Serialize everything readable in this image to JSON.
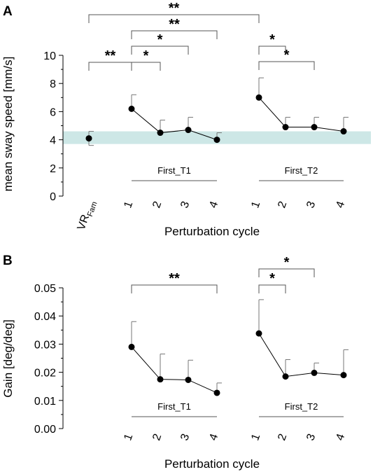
{
  "chart_data": [
    {
      "type": "scatter",
      "panel_label": "A",
      "ylabel": "mean sway speed [mm/s]",
      "xlabel": "Perturbation cycle",
      "ylim": [
        0,
        10
      ],
      "yticks": [
        "0",
        "2",
        "4",
        "6",
        "8",
        "10"
      ],
      "xticks": [
        "VR",
        "1",
        "2",
        "3",
        "4",
        "1",
        "2",
        "3",
        "4"
      ],
      "vr_subscript": "Fam",
      "band": {
        "min": 3.7,
        "max": 4.6,
        "color": "#cde7e6"
      },
      "groups": [
        {
          "label": "First_T1",
          "cycles": [
            1,
            2,
            3,
            4
          ]
        },
        {
          "label": "First_T2",
          "cycles": [
            1,
            2,
            3,
            4
          ]
        }
      ],
      "points": [
        {
          "x": "VR",
          "y": 4.1,
          "err": 0.5
        },
        {
          "x": "First_T1-1",
          "y": 6.2,
          "err": 1.0
        },
        {
          "x": "First_T1-2",
          "y": 4.5,
          "err": 0.9
        },
        {
          "x": "First_T1-3",
          "y": 4.7,
          "err": 0.9
        },
        {
          "x": "First_T1-4",
          "y": 4.0,
          "err": 0.5
        },
        {
          "x": "First_T2-1",
          "y": 7.0,
          "err": 1.4
        },
        {
          "x": "First_T2-2",
          "y": 4.9,
          "err": 0.7
        },
        {
          "x": "First_T2-3",
          "y": 4.9,
          "err": 0.7
        },
        {
          "x": "First_T2-4",
          "y": 4.6,
          "err": 1.0
        }
      ],
      "significance": [
        {
          "from": "VR",
          "to": "First_T1-1",
          "label": "**"
        },
        {
          "from": "First_T1-1",
          "to": "First_T1-2",
          "label": "*"
        },
        {
          "from": "First_T1-1",
          "to": "First_T1-3",
          "label": "*"
        },
        {
          "from": "First_T1-1",
          "to": "First_T1-4",
          "label": "**"
        },
        {
          "from": "VR",
          "to": "First_T2-1",
          "label": "**"
        },
        {
          "from": "First_T2-1",
          "to": "First_T2-2",
          "label": "*"
        },
        {
          "from": "First_T2-1",
          "to": "First_T2-3",
          "label": "*"
        }
      ]
    },
    {
      "type": "scatter",
      "panel_label": "B",
      "ylabel": "Gain [deg/deg]",
      "xlabel": "Perturbation cycle",
      "ylim": [
        0,
        0.05
      ],
      "yticks": [
        "0.00",
        "0.01",
        "0.02",
        "0.03",
        "0.04",
        "0.05"
      ],
      "xticks": [
        "1",
        "2",
        "3",
        "4",
        "1",
        "2",
        "3",
        "4"
      ],
      "groups": [
        {
          "label": "First_T1",
          "cycles": [
            1,
            2,
            3,
            4
          ]
        },
        {
          "label": "First_T2",
          "cycles": [
            1,
            2,
            3,
            4
          ]
        }
      ],
      "points": [
        {
          "x": "First_T1-1",
          "y": 0.029,
          "err": 0.009
        },
        {
          "x": "First_T1-2",
          "y": 0.0175,
          "err": 0.009
        },
        {
          "x": "First_T1-3",
          "y": 0.0173,
          "err": 0.007
        },
        {
          "x": "First_T1-4",
          "y": 0.0127,
          "err": 0.0035
        },
        {
          "x": "First_T2-1",
          "y": 0.0338,
          "err": 0.012
        },
        {
          "x": "First_T2-2",
          "y": 0.0185,
          "err": 0.006
        },
        {
          "x": "First_T2-3",
          "y": 0.0198,
          "err": 0.0035
        },
        {
          "x": "First_T2-4",
          "y": 0.019,
          "err": 0.009
        }
      ],
      "significance": [
        {
          "from": "First_T1-1",
          "to": "First_T1-4",
          "label": "**"
        },
        {
          "from": "First_T2-1",
          "to": "First_T2-2",
          "label": "*"
        },
        {
          "from": "First_T2-1",
          "to": "First_T2-3",
          "label": "*"
        }
      ]
    }
  ]
}
